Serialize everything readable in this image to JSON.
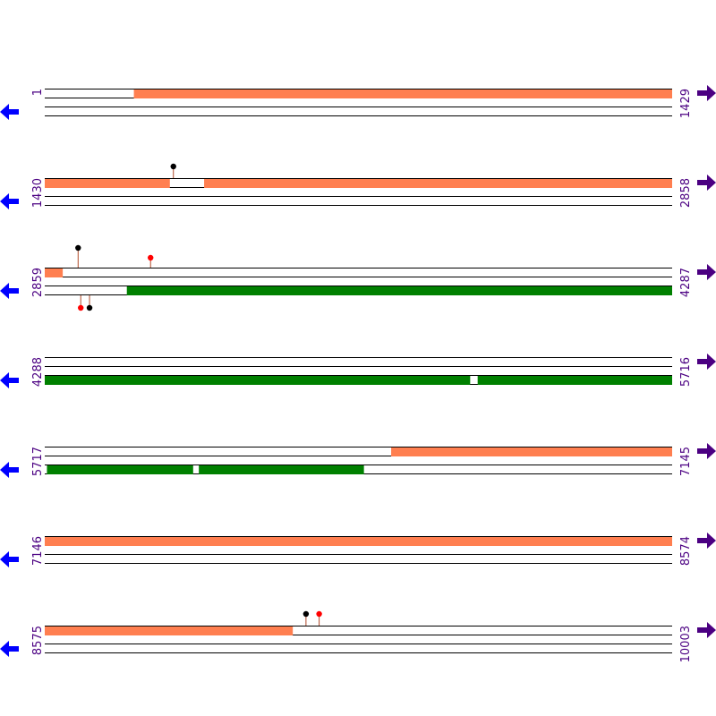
{
  "colors": {
    "forward_feature": "#ff7f50",
    "reverse_feature": "#008000",
    "track_line": "#000000",
    "left_arrow": "#0000ff",
    "right_arrow": "#4b0082",
    "coord_text": "#4b0082",
    "site_black": "#000000",
    "site_red": "#ff0000",
    "stem": "#b04a2a"
  },
  "icons": {
    "left": "arrow-left-icon",
    "right": "arrow-right-icon"
  },
  "rows": [
    {
      "start_label": "1",
      "end_label": "1429",
      "start": 1,
      "end": 1429,
      "forward": [
        [
          204,
          1429
        ]
      ],
      "reverse": [],
      "sites": []
    },
    {
      "start_label": "1430",
      "end_label": "2858",
      "start": 1430,
      "end": 2858,
      "forward": [
        [
          1430,
          1714
        ],
        [
          1793,
          2858
        ]
      ],
      "reverse": [],
      "sites": [
        {
          "pos": 1723,
          "strand": "top",
          "color": "black",
          "height": 13
        }
      ]
    },
    {
      "start_label": "2859",
      "end_label": "4287",
      "start": 2859,
      "end": 4287,
      "forward": [
        [
          2859,
          2899
        ]
      ],
      "reverse": [
        [
          3046,
          4287
        ]
      ],
      "sites": [
        {
          "pos": 2935,
          "strand": "top",
          "color": "black",
          "height": 22
        },
        {
          "pos": 3100,
          "strand": "top",
          "color": "red",
          "height": 11
        },
        {
          "pos": 2941,
          "strand": "bottom",
          "color": "red",
          "height": 14
        },
        {
          "pos": 2961,
          "strand": "bottom",
          "color": "black",
          "height": 14
        }
      ]
    },
    {
      "start_label": "4288",
      "end_label": "5716",
      "start": 4288,
      "end": 5716,
      "forward": [],
      "reverse": [
        [
          4288,
          5256
        ],
        [
          5274,
          5716
        ]
      ],
      "sites": []
    },
    {
      "start_label": "5717",
      "end_label": "7145",
      "start": 5717,
      "end": 7145,
      "forward": [
        [
          6506,
          7145
        ]
      ],
      "reverse": [
        [
          5722,
          6054
        ],
        [
          6068,
          6443
        ]
      ],
      "sites": []
    },
    {
      "start_label": "7146",
      "end_label": "8574",
      "start": 7146,
      "end": 8574,
      "forward": [
        [
          7146,
          8574
        ]
      ],
      "reverse": [],
      "sites": []
    },
    {
      "start_label": "8575",
      "end_label": "10003",
      "start": 8575,
      "end": 10003,
      "forward": [
        [
          8575,
          9139
        ]
      ],
      "reverse": [],
      "sites": [
        {
          "pos": 9170,
          "strand": "top",
          "color": "black",
          "height": 13
        },
        {
          "pos": 9200,
          "strand": "top",
          "color": "red",
          "height": 13
        }
      ]
    }
  ]
}
